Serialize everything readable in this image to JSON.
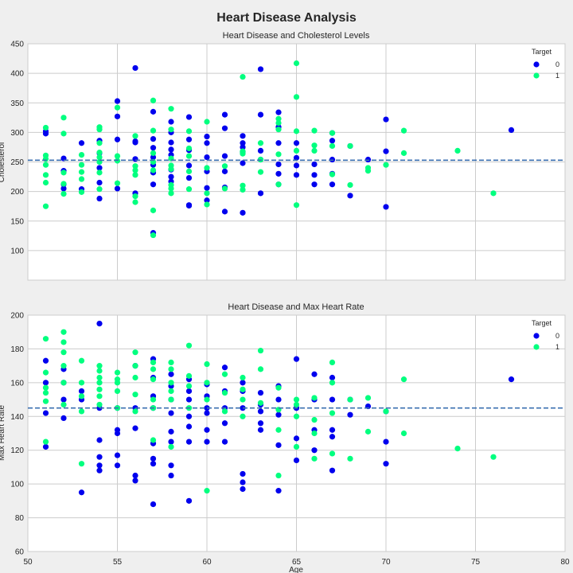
{
  "figure": {
    "title": "Heart Disease Analysis"
  },
  "colors": {
    "target_0": "#0000ee",
    "target_1": "#00ff7f",
    "mean_line": "#3a6fb0",
    "grid": "#cccccc",
    "axes_bg": "#ffffff"
  },
  "chart_data": [
    {
      "type": "scatter",
      "title": "Heart Disease and Cholesterol Levels",
      "xlabel": "",
      "ylabel": "Cholesterol",
      "xlim": [
        50,
        80
      ],
      "ylim": [
        50,
        450
      ],
      "xticks": [],
      "yticks": [
        100,
        150,
        200,
        250,
        300,
        350,
        400,
        450
      ],
      "grid": true,
      "legend": {
        "title": "Target",
        "entries": [
          "0",
          "1"
        ],
        "placement": "top-right"
      },
      "mean_line": 253,
      "series": [
        {
          "name": "0",
          "x": [
            51,
            51,
            52,
            52,
            52,
            52,
            53,
            53,
            54,
            54,
            54,
            54,
            54,
            55,
            55,
            55,
            55,
            56,
            56,
            56,
            56,
            56,
            57,
            57,
            57,
            57,
            57,
            57,
            57,
            57,
            58,
            58,
            58,
            58,
            58,
            58,
            58,
            58,
            59,
            59,
            59,
            59,
            59,
            59,
            59,
            60,
            60,
            60,
            60,
            60,
            60,
            61,
            61,
            61,
            61,
            61,
            61,
            62,
            62,
            62,
            62,
            62,
            62,
            63,
            63,
            63,
            63,
            63,
            64,
            64,
            64,
            64,
            64,
            64,
            65,
            65,
            65,
            65,
            66,
            66,
            66,
            67,
            67,
            67,
            67,
            67,
            68,
            68,
            69,
            70,
            70,
            70,
            77
          ],
          "y": [
            298,
            302,
            256,
            235,
            212,
            205,
            282,
            204,
            286,
            265,
            240,
            215,
            188,
            353,
            327,
            288,
            205,
            409,
            285,
            283,
            255,
            197,
            335,
            289,
            274,
            258,
            245,
            232,
            212,
            130,
            318,
            300,
            283,
            271,
            262,
            237,
            225,
            217,
            326,
            288,
            270,
            244,
            223,
            177,
            176,
            293,
            282,
            258,
            234,
            206,
            185,
            330,
            307,
            260,
            234,
            207,
            166,
            294,
            282,
            275,
            267,
            248,
            164,
            407,
            330,
            269,
            254,
            197,
            334,
            309,
            282,
            246,
            230,
            212,
            282,
            257,
            244,
            228,
            246,
            228,
            212,
            299,
            286,
            254,
            230,
            212,
            277,
            193,
            254,
            322,
            268,
            174,
            304
          ]
        },
        {
          "name": "1",
          "x": [
            51,
            51,
            51,
            51,
            51,
            51,
            51,
            52,
            52,
            52,
            52,
            52,
            53,
            53,
            53,
            53,
            53,
            54,
            54,
            54,
            54,
            54,
            54,
            54,
            54,
            55,
            55,
            55,
            55,
            56,
            56,
            56,
            56,
            56,
            56,
            57,
            57,
            57,
            57,
            57,
            57,
            57,
            58,
            58,
            58,
            58,
            58,
            58,
            58,
            58,
            59,
            59,
            59,
            59,
            59,
            60,
            60,
            60,
            60,
            61,
            61,
            62,
            62,
            62,
            62,
            62,
            63,
            63,
            63,
            64,
            64,
            64,
            64,
            64,
            65,
            65,
            65,
            65,
            65,
            66,
            66,
            66,
            67,
            67,
            67,
            68,
            68,
            69,
            69,
            70,
            71,
            71,
            74,
            76
          ],
          "y": [
            308,
            261,
            255,
            228,
            215,
            245,
            175,
            325,
            298,
            232,
            213,
            196,
            262,
            245,
            233,
            221,
            199,
            309,
            305,
            282,
            266,
            258,
            250,
            232,
            204,
            342,
            260,
            252,
            214,
            294,
            243,
            236,
            228,
            192,
            182,
            354,
            303,
            265,
            250,
            236,
            168,
            126,
            340,
            305,
            256,
            244,
            238,
            211,
            197,
            205,
            302,
            273,
            260,
            234,
            204,
            318,
            240,
            197,
            178,
            243,
            205,
            394,
            268,
            264,
            210,
            203,
            282,
            254,
            233,
            323,
            316,
            305,
            263,
            212,
            417,
            360,
            302,
            269,
            177,
            303,
            278,
            269,
            299,
            277,
            229,
            211,
            277,
            240,
            235,
            245,
            303,
            265,
            269,
            197
          ]
        }
      ]
    },
    {
      "type": "scatter",
      "title": "Heart Disease and Max Heart Rate",
      "xlabel": "Age",
      "ylabel": "Max Heart Rate",
      "xlim": [
        50,
        80
      ],
      "ylim": [
        60,
        200
      ],
      "xticks": [
        50,
        55,
        60,
        65,
        70,
        75,
        80
      ],
      "yticks": [
        60,
        80,
        100,
        120,
        140,
        160,
        180,
        200
      ],
      "grid": true,
      "legend": {
        "title": "Target",
        "entries": [
          "0",
          "1"
        ],
        "placement": "top-right"
      },
      "mean_line": 145,
      "series": [
        {
          "name": "0",
          "x": [
            51,
            51,
            51,
            51,
            52,
            52,
            52,
            52,
            53,
            53,
            53,
            54,
            54,
            54,
            54,
            54,
            54,
            55,
            55,
            55,
            55,
            55,
            56,
            56,
            56,
            56,
            56,
            57,
            57,
            57,
            57,
            57,
            57,
            57,
            57,
            58,
            58,
            58,
            58,
            58,
            58,
            58,
            58,
            59,
            59,
            59,
            59,
            59,
            59,
            59,
            60,
            60,
            60,
            60,
            60,
            60,
            61,
            61,
            61,
            61,
            61,
            62,
            62,
            62,
            62,
            62,
            62,
            63,
            63,
            63,
            63,
            63,
            64,
            64,
            64,
            64,
            64,
            65,
            65,
            65,
            65,
            65,
            66,
            66,
            66,
            66,
            67,
            67,
            67,
            67,
            67,
            68,
            68,
            69,
            70,
            70,
            70,
            77
          ],
          "y": [
            173,
            160,
            142,
            122,
            168,
            160,
            150,
            139,
            155,
            150,
            95,
            195,
            145,
            126,
            116,
            111,
            108,
            145,
            132,
            130,
            117,
            111,
            170,
            145,
            133,
            105,
            102,
            174,
            163,
            152,
            145,
            124,
            115,
            112,
            88,
            165,
            158,
            150,
            142,
            131,
            125,
            111,
            105,
            162,
            155,
            150,
            140,
            134,
            125,
            90,
            159,
            152,
            145,
            142,
            132,
            125,
            169,
            155,
            145,
            136,
            125,
            160,
            155,
            145,
            106,
            101,
            97,
            154,
            147,
            143,
            136,
            132,
            158,
            150,
            141,
            123,
            96,
            174,
            145,
            127,
            114,
            145,
            165,
            150,
            132,
            120,
            163,
            150,
            132,
            128,
            108,
            150,
            141,
            146,
            143,
            125,
            112,
            162
          ]
        },
        {
          "name": "1",
          "x": [
            51,
            51,
            51,
            51,
            51,
            51,
            52,
            52,
            52,
            52,
            52,
            52,
            53,
            53,
            53,
            53,
            53,
            54,
            54,
            54,
            54,
            54,
            54,
            54,
            55,
            55,
            55,
            55,
            55,
            56,
            56,
            56,
            56,
            56,
            57,
            57,
            57,
            57,
            57,
            57,
            58,
            58,
            58,
            58,
            58,
            58,
            59,
            59,
            59,
            59,
            60,
            60,
            60,
            60,
            61,
            61,
            61,
            62,
            62,
            62,
            62,
            63,
            63,
            63,
            64,
            64,
            64,
            64,
            65,
            65,
            65,
            65,
            66,
            66,
            66,
            66,
            67,
            67,
            67,
            67,
            68,
            68,
            69,
            69,
            70,
            71,
            71,
            74,
            76
          ],
          "y": [
            186,
            166,
            157,
            154,
            149,
            125,
            190,
            184,
            178,
            170,
            160,
            147,
            173,
            160,
            152,
            143,
            112,
            170,
            167,
            163,
            160,
            156,
            152,
            147,
            166,
            162,
            160,
            155,
            145,
            178,
            170,
            163,
            153,
            143,
            172,
            168,
            162,
            150,
            145,
            126,
            172,
            168,
            160,
            155,
            150,
            122,
            182,
            164,
            158,
            145,
            171,
            160,
            150,
            96,
            165,
            154,
            143,
            163,
            156,
            150,
            140,
            179,
            168,
            148,
            157,
            144,
            132,
            105,
            150,
            147,
            140,
            122,
            151,
            138,
            130,
            115,
            172,
            160,
            142,
            118,
            150,
            115,
            151,
            131,
            143,
            162,
            130,
            121,
            116
          ]
        }
      ]
    }
  ]
}
